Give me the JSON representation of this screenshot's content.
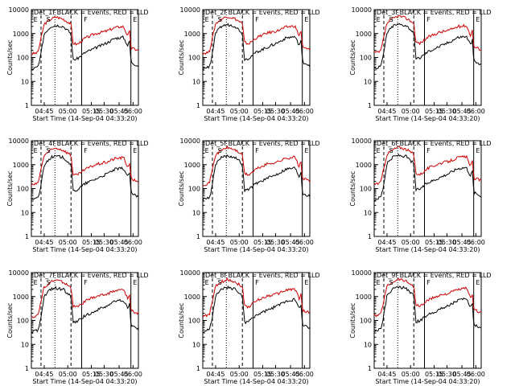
{
  "chart_data": [
    {
      "type": "line",
      "title": "Det_1f BLACK = Events, RED = LLD",
      "xlabel": "Start Time (14-Sep-04 04:33:20)",
      "ylabel": "Counts/sec",
      "ylim": [
        1,
        10000
      ],
      "yscale": "log",
      "xticks": [
        "04:45",
        "05:00",
        "05:15",
        "05:30",
        "05:45",
        "06:00"
      ],
      "yticks": [
        "1",
        "10",
        "100",
        "1000",
        "10000"
      ],
      "markers": [
        "E",
        "S",
        "F",
        "E"
      ],
      "series": [
        {
          "color": "#000000"
        },
        {
          "color": "#d00000"
        }
      ]
    },
    {
      "type": "line",
      "title": "Det_2f BLACK = Events, RED = LLD",
      "xlabel": "Start Time (14-Sep-04 04:33:20)",
      "ylabel": "Counts/sec",
      "ylim": [
        1,
        10000
      ],
      "yscale": "log",
      "xticks": [
        "04:45",
        "05:00",
        "05:15",
        "05:30",
        "05:45",
        "06:00"
      ],
      "yticks": [
        "1",
        "10",
        "100",
        "1000",
        "10000"
      ],
      "markers": [
        "E",
        "S",
        "F",
        "E"
      ],
      "series": [
        {
          "color": "#000000"
        },
        {
          "color": "#d00000"
        }
      ]
    },
    {
      "type": "line",
      "title": "Det_3f BLACK = Events, RED = LLD",
      "xlabel": "Start Time (14-Sep-04 04:33:20)",
      "ylabel": "Counts/sec",
      "ylim": [
        1,
        10000
      ],
      "yscale": "log",
      "xticks": [
        "04:45",
        "05:00",
        "05:15",
        "05:30",
        "05:45",
        "06:00"
      ],
      "yticks": [
        "1",
        "10",
        "100",
        "1000",
        "10000"
      ],
      "markers": [
        "E",
        "S",
        "F",
        "E"
      ],
      "series": [
        {
          "color": "#000000"
        },
        {
          "color": "#d00000"
        }
      ]
    },
    {
      "type": "line",
      "title": "Det_4f BLACK = Events, RED = LLD",
      "xlabel": "Start Time (14-Sep-04 04:33:20)",
      "ylabel": "Counts/sec",
      "ylim": [
        1,
        10000
      ],
      "yscale": "log",
      "xticks": [
        "04:45",
        "05:00",
        "05:15",
        "05:30",
        "05:45",
        "06:00"
      ],
      "yticks": [
        "1",
        "10",
        "100",
        "1000",
        "10000"
      ],
      "markers": [
        "E",
        "S",
        "F",
        "E"
      ],
      "series": [
        {
          "color": "#000000"
        },
        {
          "color": "#d00000"
        }
      ]
    },
    {
      "type": "line",
      "title": "Det_5f BLACK = Events, RED = LLD",
      "xlabel": "Start Time (14-Sep-04 04:33:20)",
      "ylabel": "Counts/sec",
      "ylim": [
        1,
        10000
      ],
      "yscale": "log",
      "xticks": [
        "04:45",
        "05:00",
        "05:15",
        "05:30",
        "05:45",
        "06:00"
      ],
      "yticks": [
        "1",
        "10",
        "100",
        "1000",
        "10000"
      ],
      "markers": [
        "E",
        "S",
        "F",
        "E"
      ],
      "series": [
        {
          "color": "#000000"
        },
        {
          "color": "#d00000"
        }
      ]
    },
    {
      "type": "line",
      "title": "Det_6f BLACK = Events, RED = LLD",
      "xlabel": "Start Time (14-Sep-04 04:33:20)",
      "ylabel": "Counts/sec",
      "ylim": [
        1,
        10000
      ],
      "yscale": "log",
      "xticks": [
        "04:45",
        "05:00",
        "05:15",
        "05:30",
        "05:45",
        "06:00"
      ],
      "yticks": [
        "1",
        "10",
        "100",
        "1000",
        "10000"
      ],
      "markers": [
        "E",
        "S",
        "F",
        "E"
      ],
      "series": [
        {
          "color": "#000000"
        },
        {
          "color": "#d00000"
        }
      ]
    },
    {
      "type": "line",
      "title": "Det_7f BLACK = Events, RED = LLD",
      "xlabel": "Start Time (14-Sep-04 04:33:20)",
      "ylabel": "Counts/sec",
      "ylim": [
        1,
        10000
      ],
      "yscale": "log",
      "xticks": [
        "04:45",
        "05:00",
        "05:15",
        "05:30",
        "05:45",
        "06:00"
      ],
      "yticks": [
        "1",
        "10",
        "100",
        "1000",
        "10000"
      ],
      "markers": [
        "E",
        "S",
        "F",
        "E"
      ],
      "series": [
        {
          "color": "#000000"
        },
        {
          "color": "#d00000"
        }
      ]
    },
    {
      "type": "line",
      "title": "Det_8f BLACK = Events, RED = LLD",
      "xlabel": "Start Time (14-Sep-04 04:33:20)",
      "ylabel": "Counts/sec",
      "ylim": [
        1,
        10000
      ],
      "yscale": "log",
      "xticks": [
        "04:45",
        "05:00",
        "05:15",
        "05:30",
        "05:45",
        "06:00"
      ],
      "yticks": [
        "1",
        "10",
        "100",
        "1000",
        "10000"
      ],
      "markers": [
        "E",
        "S",
        "F",
        "E"
      ],
      "series": [
        {
          "color": "#000000"
        },
        {
          "color": "#d00000"
        }
      ]
    },
    {
      "type": "line",
      "title": "Det_9f BLACK = Events, RED = LLD",
      "xlabel": "Start Time (14-Sep-04 04:33:20)",
      "ylabel": "Counts/sec",
      "ylim": [
        1,
        10000
      ],
      "yscale": "log",
      "xticks": [
        "04:45",
        "05:00",
        "05:15",
        "05:30",
        "05:45",
        "06:00"
      ],
      "yticks": [
        "1",
        "10",
        "100",
        "1000",
        "10000"
      ],
      "markers": [
        "E",
        "S",
        "F",
        "E"
      ],
      "series": [
        {
          "color": "#000000"
        },
        {
          "color": "#d00000"
        }
      ]
    }
  ]
}
